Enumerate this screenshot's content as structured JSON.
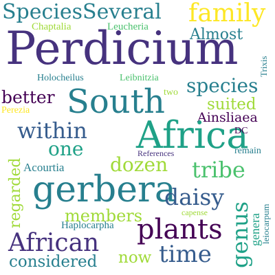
{
  "palette": {
    "yellow": "#fde725",
    "lime": "#a0da39",
    "green": "#4ac16d",
    "teal_green": "#1fa187",
    "teal": "#277f8e",
    "blue": "#365c8d",
    "indigo": "#46327e",
    "purple": "#440154"
  },
  "words": {
    "perdicium": "Perdicium",
    "species_several": "SpeciesSeveral",
    "family": "family",
    "almost": "Almost",
    "chaptalia": "Chaptalia",
    "leucheria": "Leucheria",
    "trixis": "Trixis",
    "holocheilus": "Holocheilus",
    "leibnitzia": "Leibnitzia",
    "species": "species",
    "two": "two",
    "better": "better",
    "south": "South",
    "suited": "suited",
    "perezia": "Perezia",
    "ainsliaea": "Ainsliaea",
    "within": "within",
    "africa": "Africa",
    "dc": "DC",
    "remain": "remain",
    "one": "one",
    "references": "References",
    "dozen": "dozen",
    "tribe": "tribe",
    "acourtia": "Acourtia",
    "gerbera": "gerbera",
    "daisy": "daisy",
    "genus": "genus",
    "genera": "genera",
    "leiocarpum": "leiocarpum",
    "capense": "capense",
    "members": "members",
    "regarded": "regarded",
    "haplocarpha": "Haplocarpha",
    "plants": "plants",
    "african": "African",
    "time": "time",
    "now": "now",
    "considered": "considered"
  }
}
